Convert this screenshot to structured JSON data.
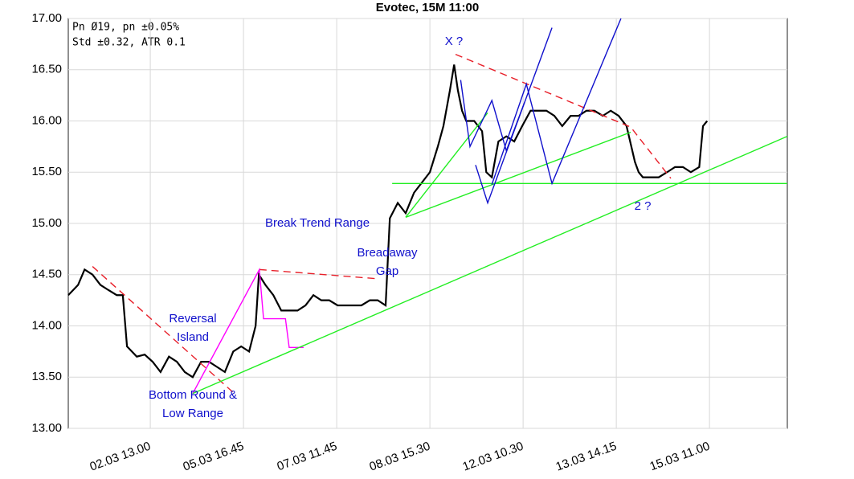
{
  "chart_data": {
    "type": "line",
    "title": "Evotec, 15M 11:00",
    "stats": [
      "Pn  Ø19, pn ±0.05%",
      "Std ±0.32, ATR 0.1"
    ],
    "xlim": [
      -17.6,
      136.7
    ],
    "xticks": [
      {
        "value": 0,
        "label": "02.03 13.00"
      },
      {
        "value": 20,
        "label": "05.03 16.45"
      },
      {
        "value": 40,
        "label": "07.03 11.45"
      },
      {
        "value": 60,
        "label": "08.03 15.30"
      },
      {
        "value": 80,
        "label": "12.03 10.30"
      },
      {
        "value": 100,
        "label": "13.03 14.15"
      },
      {
        "value": 120,
        "label": "15.03 11.00"
      }
    ],
    "ylim": [
      13,
      17
    ],
    "yticks": [
      {
        "value": 13,
        "label": "13.00"
      },
      {
        "value": 13.5,
        "label": "13.50"
      },
      {
        "value": 14,
        "label": "14.00"
      },
      {
        "value": 14.5,
        "label": "14.50"
      },
      {
        "value": 15,
        "label": "15.00"
      },
      {
        "value": 15.5,
        "label": "15.50"
      },
      {
        "value": 16,
        "label": "16.00"
      },
      {
        "value": 16.5,
        "label": "16.50"
      },
      {
        "value": 17,
        "label": "17.00"
      }
    ],
    "grid": true,
    "series": [
      {
        "color": "#000000",
        "x": [
          -17.6,
          -15.5,
          -14.1,
          -12.4,
          -10.7,
          -9,
          -7.2,
          -5.9,
          -5,
          -2.9,
          -1.2,
          0.5,
          2.2,
          4,
          5.7,
          7.4,
          9.1,
          10.9,
          12.6,
          14.3,
          16,
          17.8,
          19.5,
          21.2,
          22.6,
          23.3,
          24.7,
          26.4,
          28.1,
          29.8,
          31.6,
          33.3,
          35,
          36.7,
          38.4,
          40.2,
          41.9,
          43.6,
          45.3,
          47.1,
          48.8,
          50.5,
          51.4,
          53.1,
          54.8,
          56.6,
          58.3,
          60,
          61.7,
          62.9,
          64.3,
          65.2,
          66,
          66.9,
          67.8,
          69.5,
          71.2,
          72.1,
          73.3,
          74.7,
          76.4,
          78.1,
          79.8,
          81.6,
          83.3,
          85,
          86.7,
          88.4,
          90.2,
          91.9,
          93.6,
          95.3,
          97.1,
          98.8,
          100.5,
          102.2,
          104,
          104.8,
          105.7,
          107.4,
          109.1,
          110.9,
          112.6,
          114.3,
          116,
          117.8,
          118.6,
          119.5
        ],
        "values": [
          14.3,
          14.4,
          14.55,
          14.5,
          14.4,
          14.35,
          14.3,
          14.3,
          13.8,
          13.7,
          13.72,
          13.65,
          13.55,
          13.7,
          13.65,
          13.55,
          13.5,
          13.65,
          13.65,
          13.6,
          13.55,
          13.75,
          13.8,
          13.75,
          14.0,
          14.5,
          14.4,
          14.3,
          14.15,
          14.15,
          14.15,
          14.2,
          14.3,
          14.25,
          14.25,
          14.2,
          14.2,
          14.2,
          14.2,
          14.25,
          14.25,
          14.2,
          15.05,
          15.2,
          15.1,
          15.3,
          15.4,
          15.5,
          15.75,
          15.95,
          16.3,
          16.55,
          16.3,
          16.1,
          16.0,
          16.0,
          15.9,
          15.5,
          15.45,
          15.8,
          15.85,
          15.8,
          15.95,
          16.1,
          16.1,
          16.1,
          16.05,
          15.95,
          16.05,
          16.05,
          16.1,
          16.1,
          16.05,
          16.1,
          16.05,
          15.95,
          15.6,
          15.5,
          15.45,
          15.45,
          15.45,
          15.5,
          15.55,
          15.55,
          15.5,
          15.55,
          15.95,
          16.0
        ]
      }
    ],
    "overlays": [
      {
        "color": "#e8202a",
        "dash": true,
        "x": [
          -12.4,
          17.8
        ],
        "values": [
          14.58,
          13.35
        ]
      },
      {
        "color": "#e8202a",
        "dash": true,
        "x": [
          23.4,
          48.8
        ],
        "values": [
          14.55,
          14.46
        ]
      },
      {
        "color": "#e8202a",
        "dash": true,
        "x": [
          65.5,
          103.1,
          111.7
        ],
        "values": [
          16.65,
          15.94,
          15.44
        ]
      },
      {
        "color": "#ff00ff",
        "dash": false,
        "x": [
          9.1,
          23.4,
          24.3,
          29,
          29.8,
          32.9
        ],
        "values": [
          13.34,
          14.55,
          14.07,
          14.07,
          13.79,
          13.79
        ]
      },
      {
        "color": "#22ee22",
        "dash": false,
        "x": [
          9.1,
          136.7
        ],
        "values": [
          13.34,
          15.85
        ]
      },
      {
        "color": "#22ee22",
        "dash": false,
        "x": [
          54.8,
          103.1
        ],
        "values": [
          15.06,
          15.89
        ]
      },
      {
        "color": "#22ee22",
        "dash": false,
        "x": [
          54.8,
          72.4
        ],
        "values": [
          15.06,
          16.08
        ]
      },
      {
        "color": "#22ee22",
        "dash": false,
        "x": [
          51.9,
          136.7
        ],
        "values": [
          15.39,
          15.39
        ]
      },
      {
        "color": "#1010cc",
        "dash": false,
        "x": [
          66.6,
          68.6,
          73.3,
          76.4,
          80.3
        ],
        "values": [
          16.4,
          15.75,
          16.2,
          15.71,
          16.18
        ]
      },
      {
        "color": "#1010cc",
        "dash": false,
        "x": [
          69.8,
          72.4,
          86.2
        ],
        "values": [
          15.57,
          15.2,
          16.91
        ]
      },
      {
        "color": "#1010cc",
        "dash": false,
        "x": [
          73.3,
          80.7,
          86.2,
          101
        ],
        "values": [
          15.38,
          16.36,
          15.39,
          17.0
        ]
      }
    ],
    "annotations": [
      [
        "X ?"
      ],
      [
        "Break Trend Range"
      ],
      [
        "Breadaway",
        "Gap"
      ],
      [
        "Reversal",
        "Island"
      ],
      [
        "Bottom Round &",
        "Low Range"
      ],
      [
        "2 ?"
      ]
    ]
  }
}
